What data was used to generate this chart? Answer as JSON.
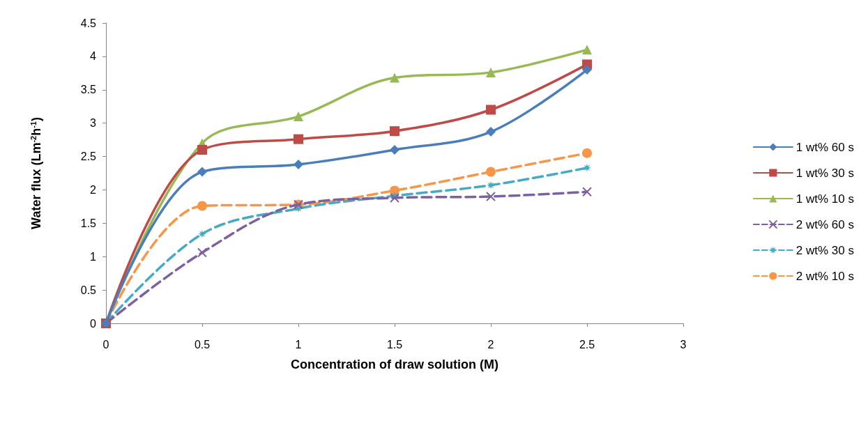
{
  "chart_data": {
    "type": "line",
    "xlabel": "Concentration of draw solution (M)",
    "ylabel": "Water flux (Lm$^{-2}$h$^{-1}$)",
    "x": [
      0,
      0.5,
      1,
      1.5,
      2,
      2.5
    ],
    "xlim": [
      0,
      3
    ],
    "xticks": [
      0,
      0.5,
      1,
      1.5,
      2,
      2.5,
      3
    ],
    "ylim": [
      0,
      4.5
    ],
    "yticks": [
      0,
      0.5,
      1,
      1.5,
      2,
      2.5,
      3,
      3.5,
      4,
      4.5
    ],
    "grid": false,
    "legend": "right",
    "series": [
      {
        "name": "1 wt% 60 s",
        "color": "#4a7ebb",
        "marker": "diamond",
        "line_style": "solid",
        "values": [
          0,
          2.27,
          2.38,
          2.6,
          2.87,
          3.8
        ]
      },
      {
        "name": "1 wt% 30 s",
        "color": "#be4b48",
        "marker": "square",
        "line_style": "solid",
        "values": [
          0,
          2.6,
          2.76,
          2.88,
          3.2,
          3.88
        ]
      },
      {
        "name": "1 wt% 10 s",
        "color": "#98b954",
        "marker": "triangle",
        "line_style": "solid",
        "values": [
          0,
          2.7,
          3.1,
          3.68,
          3.76,
          4.1
        ]
      },
      {
        "name": "2 wt% 60 s",
        "color": "#7d60a0",
        "marker": "cross",
        "line_style": "dashed",
        "values": [
          0,
          1.06,
          1.78,
          1.88,
          1.9,
          1.97
        ]
      },
      {
        "name": "2 wt% 30 s",
        "color": "#46aac5",
        "marker": "star",
        "line_style": "dashed",
        "values": [
          0,
          1.34,
          1.72,
          1.91,
          2.07,
          2.33
        ]
      },
      {
        "name": "2 wt% 10 s",
        "color": "#f79646",
        "marker": "circle",
        "line_style": "dashed",
        "values": [
          0,
          1.76,
          1.78,
          1.99,
          2.27,
          2.55
        ]
      }
    ]
  }
}
